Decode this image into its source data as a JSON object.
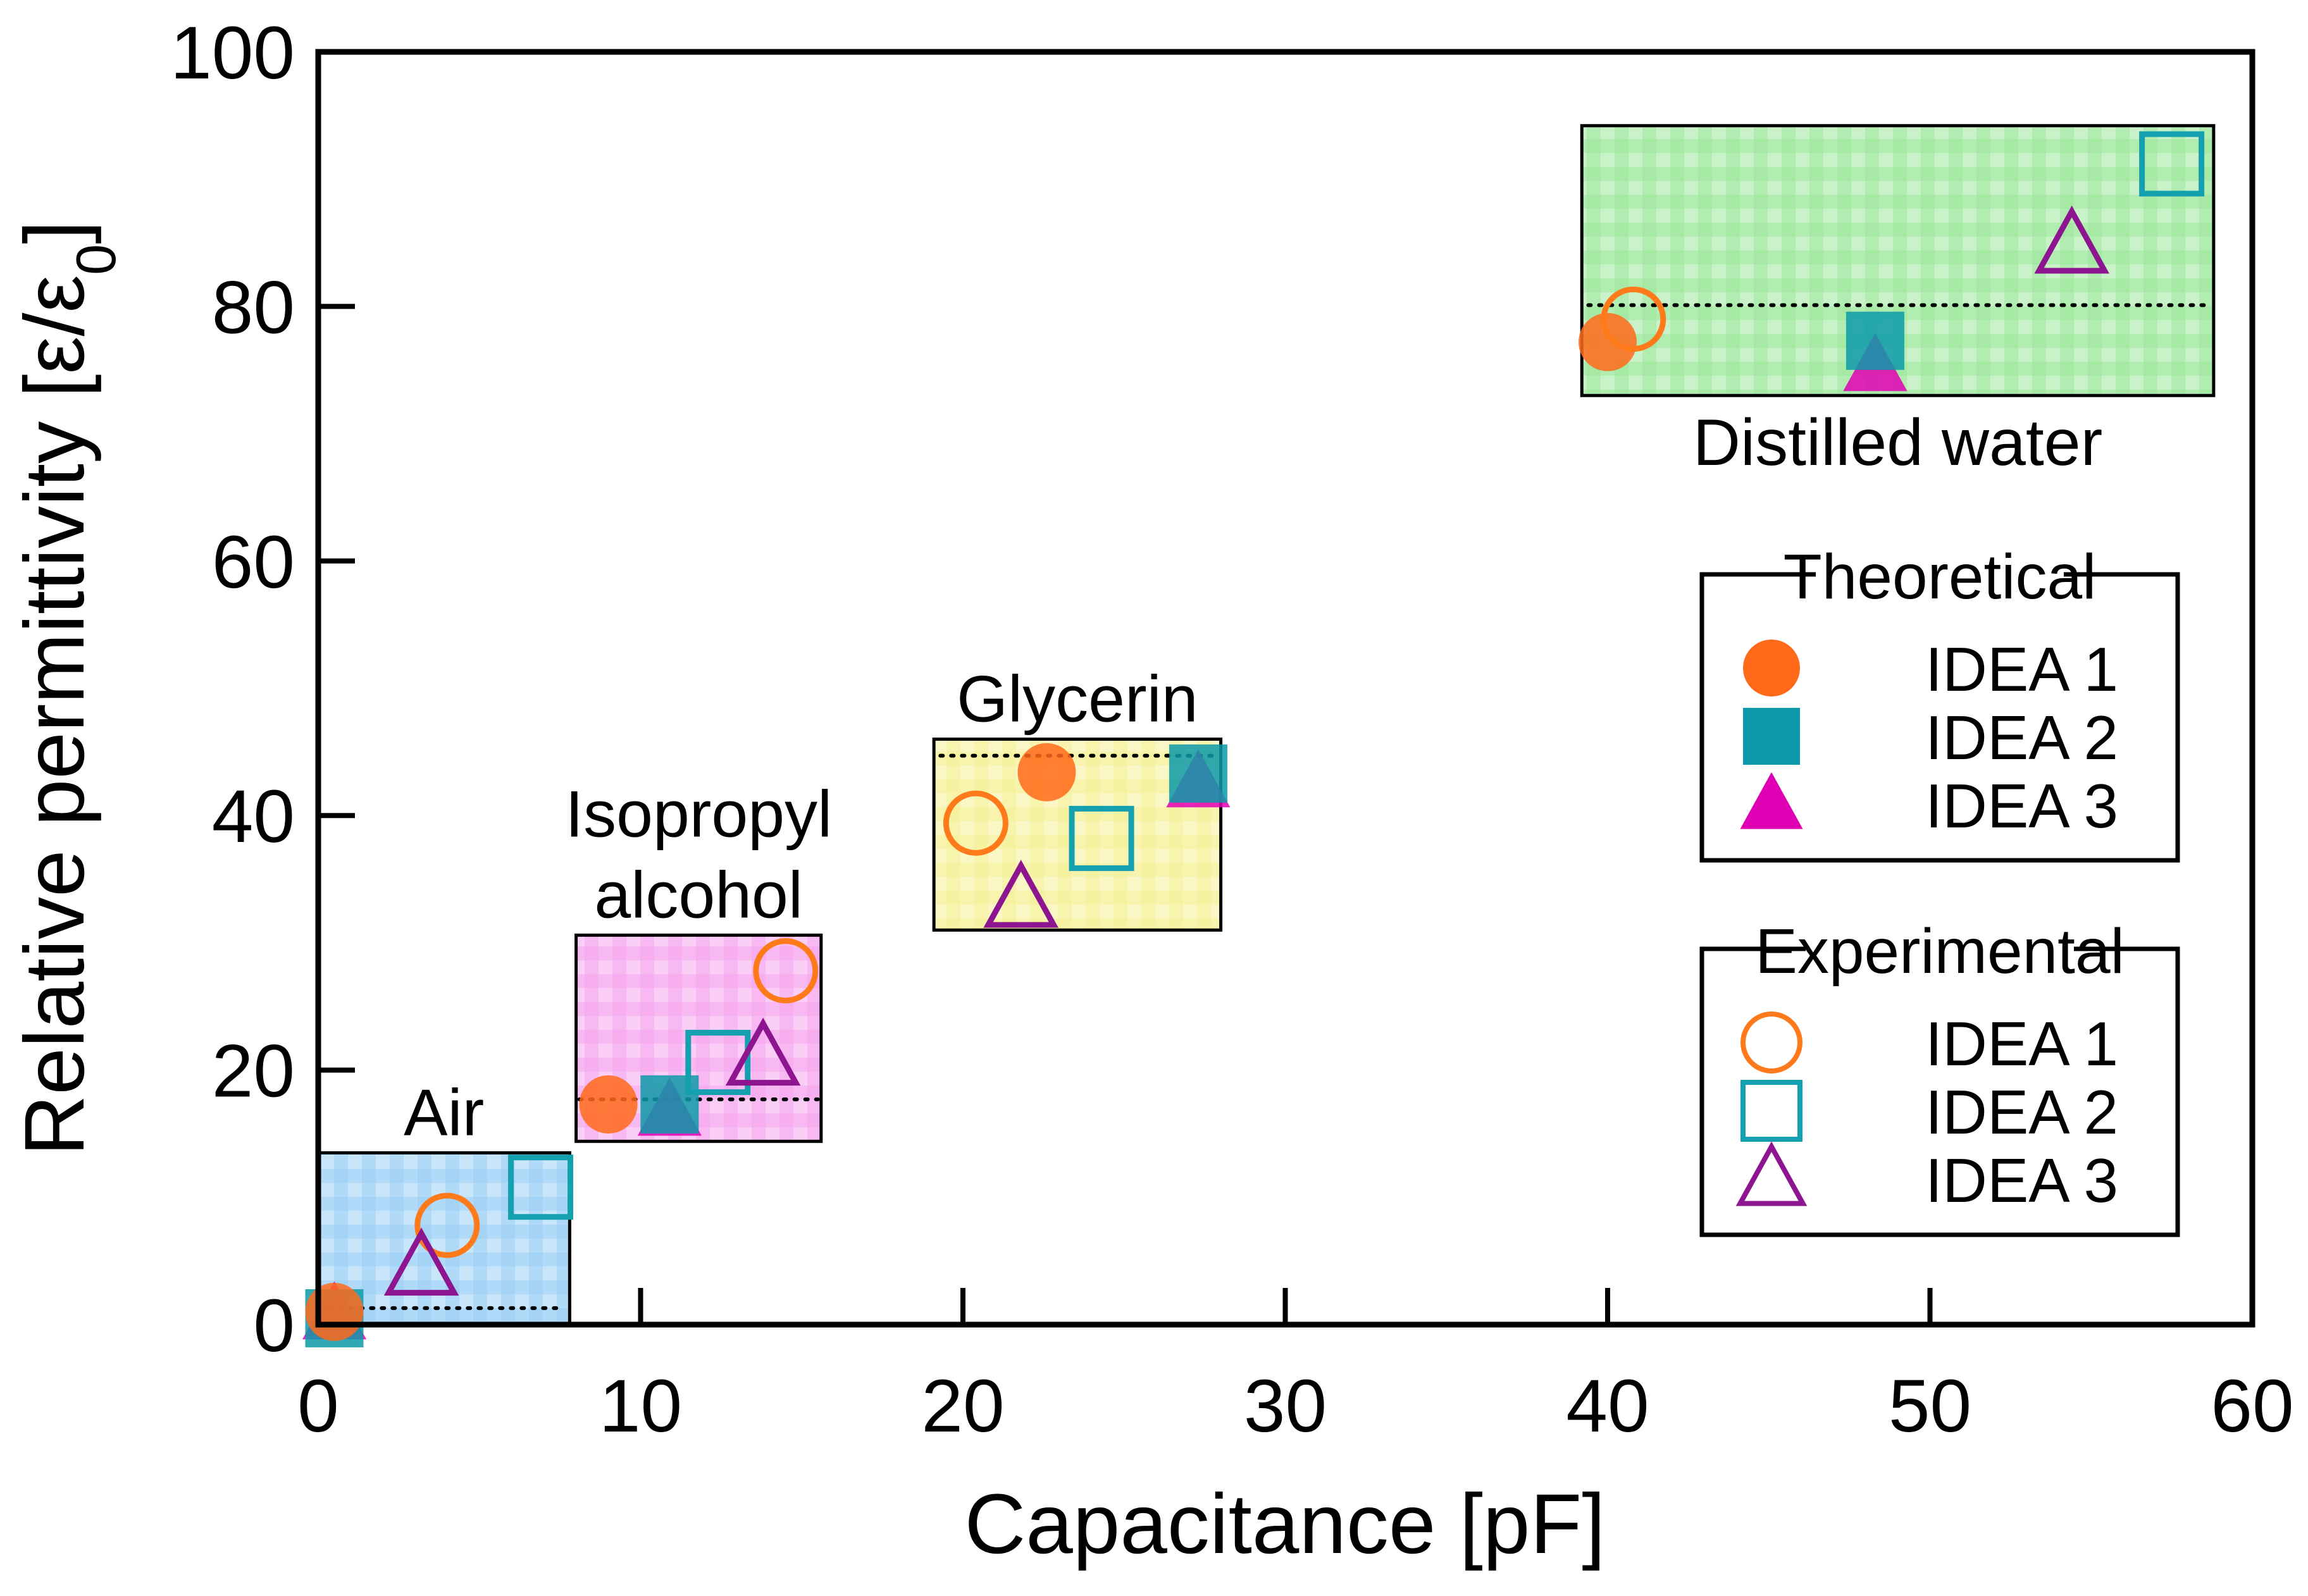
{
  "chart_data": {
    "type": "scatter",
    "xlabel": "Capacitance [pF]",
    "ylabel": "Relative permittivity  [ε/ε",
    "ylabel_sub": "0",
    "ylabel_close": "]",
    "xlim": [
      0,
      60
    ],
    "ylim": [
      0,
      100
    ],
    "xticks": [
      0,
      10,
      20,
      30,
      40,
      50,
      60
    ],
    "yticks": [
      0,
      20,
      40,
      60,
      80,
      100
    ],
    "xtick_labels": [
      "0",
      "10",
      "20",
      "30",
      "40",
      "50",
      "60"
    ],
    "ytick_labels": [
      "0",
      "20",
      "40",
      "60",
      "80",
      "100"
    ],
    "colors": {
      "idea1_theo": "#ff6a1a",
      "idea2_theo": "#0d9aa8",
      "idea3_theo": "#e000b4",
      "idea1_exp": "#ff7a1a",
      "idea2_exp": "#15a0b0",
      "idea3_exp": "#8e1590"
    },
    "materials": [
      {
        "name": "Air",
        "label_lines": [
          "Air"
        ],
        "label_pos": "top",
        "box_x": [
          0,
          7.8
        ],
        "box_y": [
          0,
          13.5
        ],
        "box_color": "#9dd0f5",
        "reference_permittivity": 1.3,
        "reference_x": [
          0.3,
          7.5
        ],
        "theoretical": {
          "IDEA 1": [
            0.5,
            1.0
          ],
          "IDEA 2": [
            0.5,
            0.5
          ],
          "IDEA 3": [
            0.5,
            0.8
          ]
        },
        "experimental": {
          "IDEA 1": [
            4.0,
            7.8
          ],
          "IDEA 2": [
            6.9,
            10.8
          ],
          "IDEA 3": [
            3.2,
            4.5
          ]
        }
      },
      {
        "name": "Isopropyl alcohol",
        "label_lines": [
          "Isopropyl",
          "alcohol"
        ],
        "label_pos": "top",
        "box_x": [
          8.0,
          15.6
        ],
        "box_y": [
          14.4,
          30.6
        ],
        "box_color": "#f5a6ee",
        "reference_permittivity": 17.7,
        "reference_x": [
          8.1,
          15.5
        ],
        "theoretical": {
          "IDEA 1": [
            9.0,
            17.3
          ],
          "IDEA 2": [
            10.9,
            17.3
          ],
          "IDEA 3": [
            10.9,
            16.8
          ]
        },
        "experimental": {
          "IDEA 1": [
            14.5,
            27.8
          ],
          "IDEA 2": [
            12.4,
            20.6
          ],
          "IDEA 3": [
            13.8,
            21.0
          ]
        }
      },
      {
        "name": "Glycerin",
        "label_lines": [
          "Glycerin"
        ],
        "label_pos": "top",
        "box_x": [
          19.1,
          28.0
        ],
        "box_y": [
          31.0,
          46.0
        ],
        "box_color": "#f5f099",
        "reference_permittivity": 44.7,
        "reference_x": [
          19.3,
          27.8
        ],
        "theoretical": {
          "IDEA 1": [
            22.6,
            43.4
          ],
          "IDEA 2": [
            27.3,
            43.3
          ],
          "IDEA 3": [
            27.3,
            42.6
          ]
        },
        "experimental": {
          "IDEA 1": [
            20.4,
            39.4
          ],
          "IDEA 2": [
            24.3,
            38.2
          ],
          "IDEA 3": [
            21.8,
            33.4
          ]
        }
      },
      {
        "name": "Distilled water",
        "label_lines": [
          "Distilled water"
        ],
        "label_pos": "bottom",
        "box_x": [
          39.2,
          58.8
        ],
        "box_y": [
          73.0,
          94.2
        ],
        "box_color": "#9de69d",
        "reference_permittivity": 80.1,
        "reference_x": [
          39.4,
          58.6
        ],
        "theoretical": {
          "IDEA 1": [
            40.0,
            77.2
          ],
          "IDEA 2": [
            48.3,
            77.3
          ],
          "IDEA 3": [
            48.3,
            75.3
          ]
        },
        "experimental": {
          "IDEA 1": [
            40.8,
            79.0
          ],
          "IDEA 2": [
            57.5,
            91.2
          ],
          "IDEA 3": [
            54.4,
            84.8
          ]
        }
      }
    ],
    "legends": [
      {
        "title": "Theoretical",
        "position": "right-middle",
        "entries": [
          {
            "label": "IDEA 1",
            "marker": "circle",
            "filled": true,
            "color_key": "idea1_theo"
          },
          {
            "label": "IDEA 2",
            "marker": "square",
            "filled": true,
            "color_key": "idea2_theo"
          },
          {
            "label": "IDEA 3",
            "marker": "triangle",
            "filled": true,
            "color_key": "idea3_theo"
          }
        ]
      },
      {
        "title": "Experimental",
        "position": "bottom-right",
        "entries": [
          {
            "label": "IDEA 1",
            "marker": "circle",
            "filled": false,
            "color_key": "idea1_exp"
          },
          {
            "label": "IDEA 2",
            "marker": "square",
            "filled": false,
            "color_key": "idea2_exp"
          },
          {
            "label": "IDEA 3",
            "marker": "triangle",
            "filled": false,
            "color_key": "idea3_exp"
          }
        ]
      }
    ]
  }
}
